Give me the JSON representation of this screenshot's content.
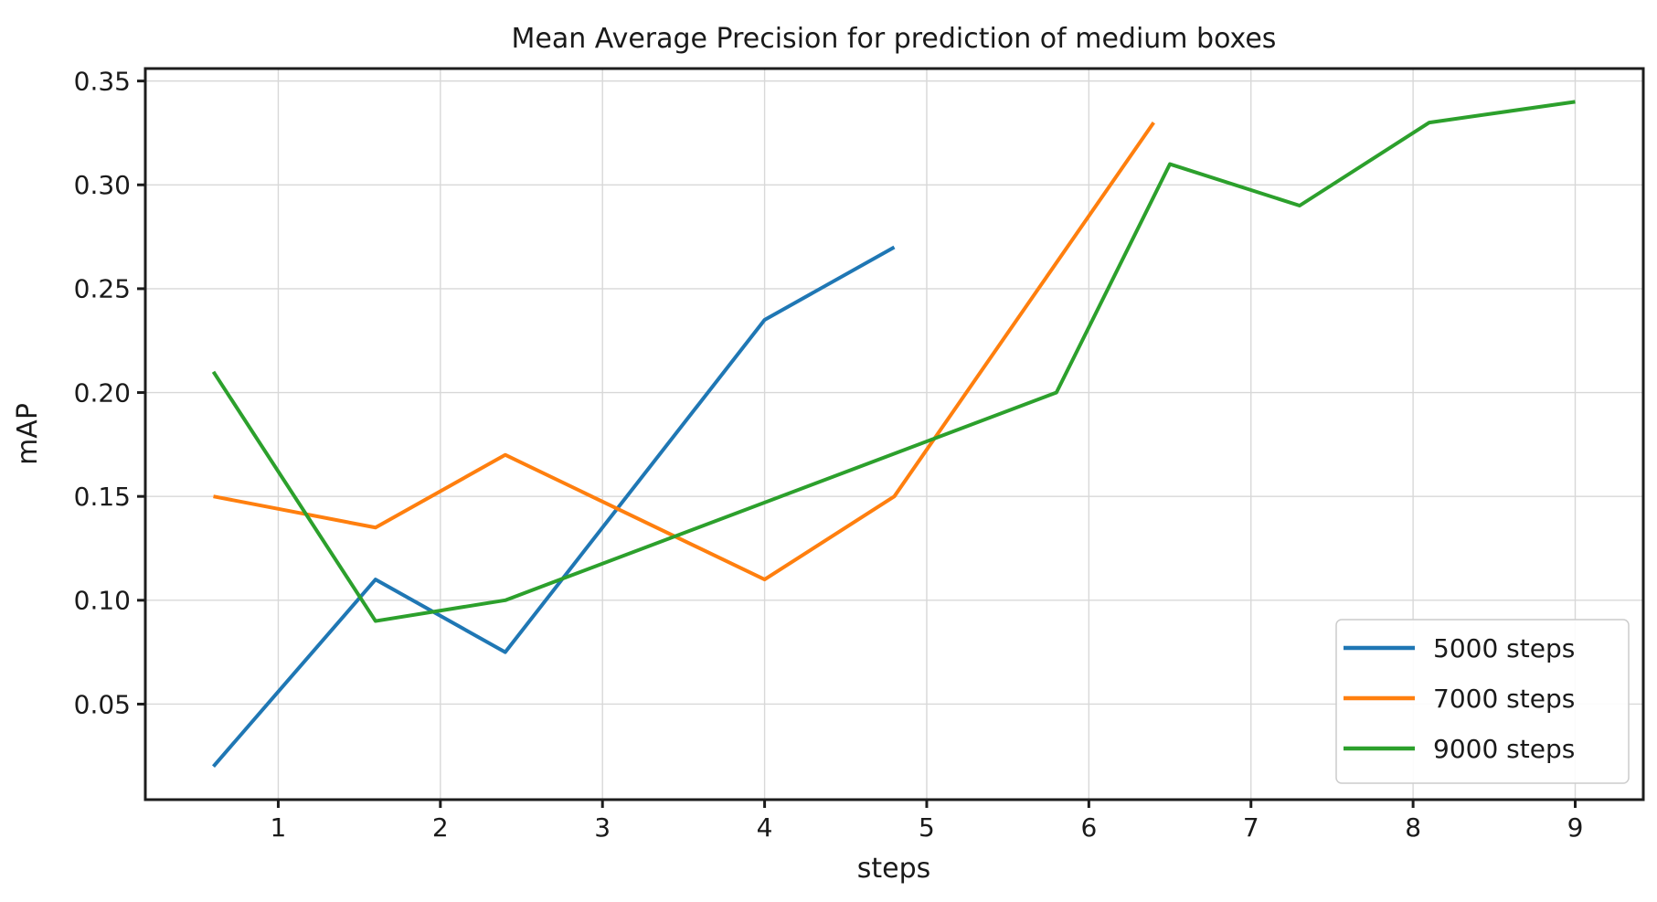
{
  "chart_data": {
    "type": "line",
    "title": "Mean Average Precision for prediction of medium boxes",
    "xlabel": "steps",
    "ylabel": "mAP",
    "xlim": [
      0.18,
      9.42
    ],
    "ylim": [
      0.004,
      0.356
    ],
    "xticks": [
      1,
      2,
      3,
      4,
      5,
      6,
      7,
      8,
      9
    ],
    "yticks": [
      0.05,
      0.1,
      0.15,
      0.2,
      0.25,
      0.3,
      0.35
    ],
    "grid": true,
    "legend_position": "lower right",
    "series": [
      {
        "name": "5000 steps",
        "color": "#1f77b4",
        "x": [
          0.6,
          1.6,
          2.4,
          4.0,
          4.8
        ],
        "y": [
          0.02,
          0.11,
          0.075,
          0.235,
          0.27
        ]
      },
      {
        "name": "7000 steps",
        "color": "#ff7f0e",
        "x": [
          0.6,
          1.6,
          2.4,
          4.0,
          4.8,
          6.4
        ],
        "y": [
          0.15,
          0.135,
          0.17,
          0.11,
          0.15,
          0.33
        ]
      },
      {
        "name": "9000 steps",
        "color": "#2ca02c",
        "x": [
          0.6,
          1.6,
          2.4,
          5.8,
          6.5,
          7.3,
          8.1,
          9.0
        ],
        "y": [
          0.21,
          0.09,
          0.1,
          0.2,
          0.31,
          0.29,
          0.33,
          0.34
        ]
      }
    ],
    "colors": {
      "text": "#1a1a1a",
      "spine": "#1d1d1d",
      "grid": "#d8d8d8",
      "legend_border": "#cccccc",
      "background": "#ffffff"
    }
  }
}
